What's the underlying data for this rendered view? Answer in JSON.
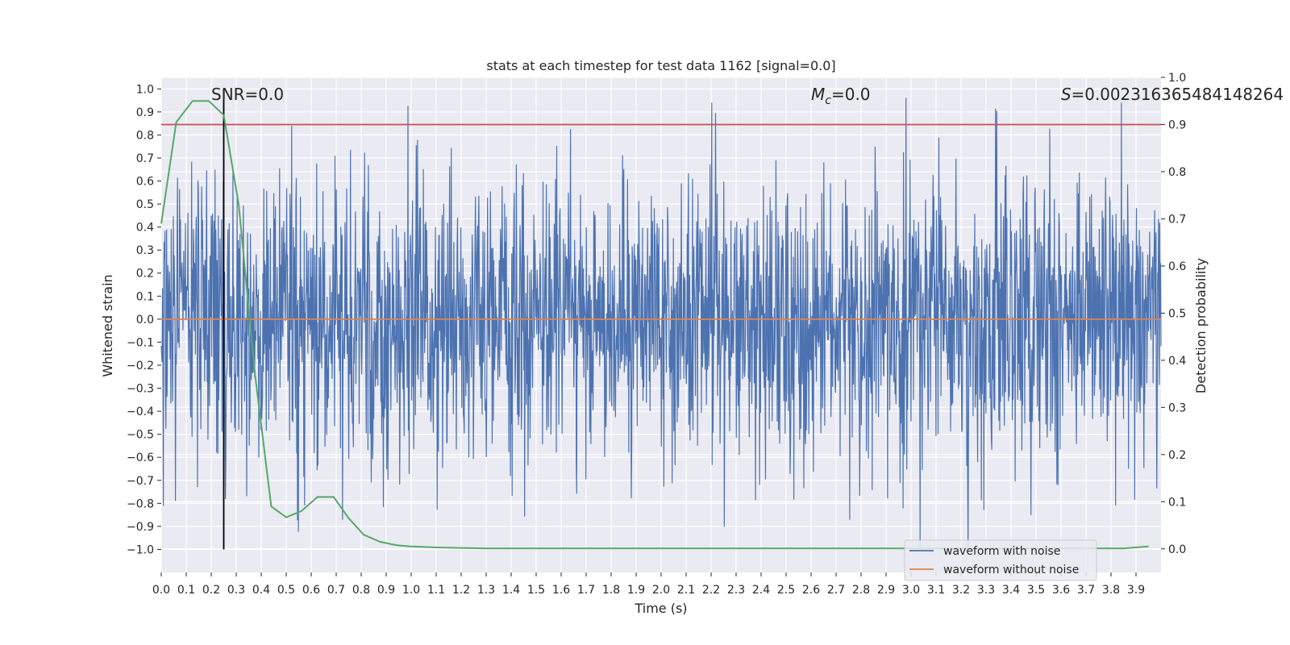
{
  "chart_data": {
    "type": "line",
    "title": "stats at each timestep for test data 1162 [signal=0.0]",
    "xlabel": "Time (s)",
    "ylabel_left": "Whitened strain",
    "ylabel_right": "Detection probability",
    "xlim": [
      0.0,
      4.0
    ],
    "ylim_left": [
      -1.1,
      1.05
    ],
    "ylim_right": [
      -0.05,
      1.0
    ],
    "xticks": [
      "0.0",
      "0.1",
      "0.2",
      "0.3",
      "0.4",
      "0.5",
      "0.6",
      "0.7",
      "0.8",
      "0.9",
      "1.0",
      "1.1",
      "1.2",
      "1.3",
      "1.4",
      "1.5",
      "1.6",
      "1.7",
      "1.8",
      "1.9",
      "2.0",
      "2.1",
      "2.2",
      "2.3",
      "2.4",
      "2.5",
      "2.6",
      "2.7",
      "2.8",
      "2.9",
      "3.0",
      "3.1",
      "3.2",
      "3.3",
      "3.4",
      "3.5",
      "3.6",
      "3.7",
      "3.8",
      "3.9"
    ],
    "yticks_left": [
      "−1.0",
      "−0.9",
      "−0.8",
      "−0.7",
      "−0.6",
      "−0.5",
      "−0.4",
      "−0.3",
      "−0.2",
      "−0.1",
      "0.0",
      "0.1",
      "0.2",
      "0.3",
      "0.4",
      "0.5",
      "0.6",
      "0.7",
      "0.8",
      "0.9",
      "1.0"
    ],
    "yticks_right": [
      "0.0",
      "0.1",
      "0.2",
      "0.3",
      "0.4",
      "0.5",
      "0.6",
      "0.7",
      "0.8",
      "0.9",
      "1.0"
    ],
    "grid": true,
    "legend_position": "lower-right",
    "annotations": {
      "snr": "SNR=0.0",
      "mc_symbol": "M",
      "mc_sub": "c",
      "mc_value": "=0.0",
      "s_symbol": "S",
      "s_value": "=0.002316365484148264"
    },
    "series": [
      {
        "name": "waveform with noise",
        "axis": "left",
        "color": "#4c72b0",
        "style": "noise",
        "time_range": [
          0.0,
          4.0
        ],
        "typical_amplitude": 0.3,
        "min_value": -1.0,
        "max_value": 0.96
      },
      {
        "name": "waveform without noise",
        "axis": "left",
        "color": "#dd8452",
        "x": [
          0.0,
          4.0
        ],
        "y": [
          0.0,
          0.0
        ]
      },
      {
        "name": "",
        "axis": "right",
        "color": "#55a868",
        "x": [
          0.0,
          0.06,
          0.125,
          0.19,
          0.25,
          0.31,
          0.375,
          0.44,
          0.5,
          0.56,
          0.625,
          0.69,
          0.75,
          0.81,
          0.875,
          0.94,
          1.0,
          1.1,
          1.3,
          1.5,
          2.0,
          2.5,
          3.0,
          3.5,
          3.85,
          3.95
        ],
        "y": [
          0.69,
          0.905,
          0.95,
          0.95,
          0.92,
          0.73,
          0.37,
          0.09,
          0.067,
          0.08,
          0.11,
          0.11,
          0.065,
          0.03,
          0.015,
          0.008,
          0.005,
          0.003,
          0.001,
          0.001,
          0.001,
          0.001,
          0.001,
          0.001,
          0.001,
          0.005
        ]
      }
    ],
    "reference_lines": {
      "threshold": {
        "axis": "right",
        "value": 0.9,
        "color": "#c44e52"
      },
      "marker_time": {
        "x": 0.25,
        "y_from": -1.0,
        "y_to": 1.0,
        "color": "#000000"
      }
    }
  }
}
